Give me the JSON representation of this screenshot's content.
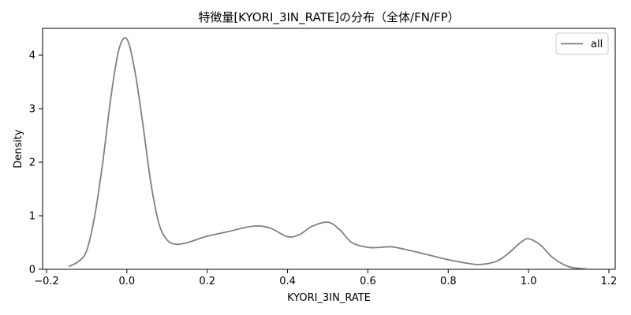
{
  "chart_data": {
    "type": "line",
    "title": "特徴量[KYORI_3IN_RATE]の分布（全体/FN/FP）",
    "xlabel": "KYORI_3IN_RATE",
    "ylabel": "Density",
    "xlim": [
      -0.2,
      1.2
    ],
    "ylim": [
      0,
      4.5
    ],
    "xticks": [
      -0.2,
      0.0,
      0.2,
      0.4,
      0.6,
      0.8,
      1.0,
      1.2
    ],
    "xtick_labels": [
      "−0.2",
      "0.0",
      "0.2",
      "0.4",
      "0.6",
      "0.8",
      "1.0",
      "1.2"
    ],
    "yticks": [
      0,
      1,
      2,
      3,
      4
    ],
    "ytick_labels": [
      "0",
      "1",
      "2",
      "3",
      "4"
    ],
    "grid": false,
    "legend_position": "top-right",
    "series": [
      {
        "name": "all",
        "color": "#808080",
        "x": [
          -0.145,
          -0.12,
          -0.1,
          -0.08,
          -0.06,
          -0.04,
          -0.02,
          0.0,
          0.02,
          0.04,
          0.06,
          0.08,
          0.1,
          0.12,
          0.14,
          0.16,
          0.2,
          0.25,
          0.3,
          0.33,
          0.36,
          0.4,
          0.43,
          0.46,
          0.5,
          0.53,
          0.56,
          0.6,
          0.63,
          0.66,
          0.7,
          0.75,
          0.8,
          0.85,
          0.88,
          0.92,
          0.95,
          0.98,
          1.0,
          1.03,
          1.06,
          1.1,
          1.145
        ],
        "y": [
          0.05,
          0.15,
          0.35,
          1.0,
          2.0,
          3.2,
          4.1,
          4.3,
          3.7,
          2.7,
          1.6,
          0.85,
          0.55,
          0.47,
          0.48,
          0.52,
          0.62,
          0.7,
          0.79,
          0.81,
          0.76,
          0.61,
          0.65,
          0.8,
          0.88,
          0.74,
          0.5,
          0.41,
          0.41,
          0.42,
          0.36,
          0.27,
          0.18,
          0.11,
          0.09,
          0.15,
          0.3,
          0.5,
          0.57,
          0.45,
          0.22,
          0.05,
          0.01
        ]
      }
    ]
  }
}
